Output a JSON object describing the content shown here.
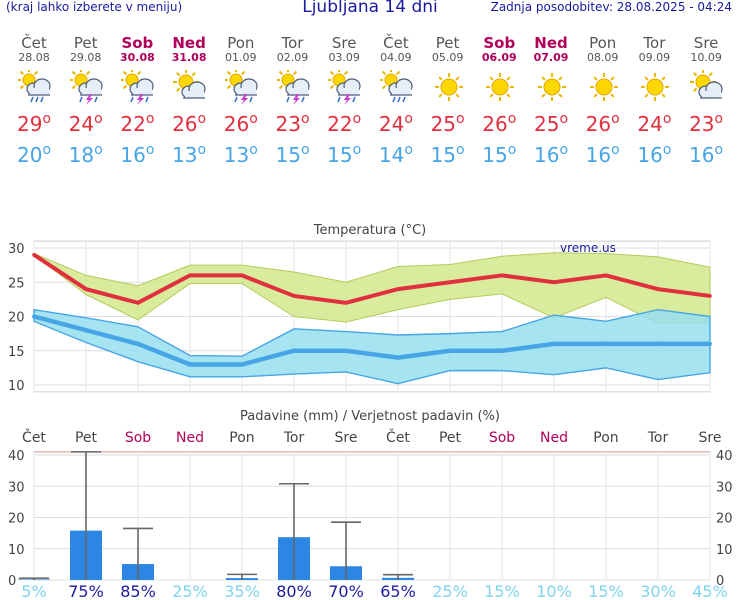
{
  "header": {
    "menu_hint": "(kraj lahko izberete v meniju)",
    "title": "Ljubljana 14 dni",
    "updated": "Zadnja posodobitev: 28.08.2025 - 04:24"
  },
  "days": [
    {
      "name": "Čet",
      "date": "28.08",
      "weekend": false,
      "icon": "sun-cloud-rain-icon",
      "tmax": "29",
      "tmin": "20"
    },
    {
      "name": "Pet",
      "date": "29.08",
      "weekend": false,
      "icon": "sun-thunderstorm-icon",
      "tmax": "24",
      "tmin": "18"
    },
    {
      "name": "Sob",
      "date": "30.08",
      "weekend": true,
      "icon": "sun-thunderstorm-icon",
      "tmax": "22",
      "tmin": "16"
    },
    {
      "name": "Ned",
      "date": "31.08",
      "weekend": true,
      "icon": "sun-cloud-icon",
      "tmax": "26",
      "tmin": "13"
    },
    {
      "name": "Pon",
      "date": "01.09",
      "weekend": false,
      "icon": "sun-thunderstorm-icon",
      "tmax": "26",
      "tmin": "13"
    },
    {
      "name": "Tor",
      "date": "02.09",
      "weekend": false,
      "icon": "sun-thunderstorm-icon",
      "tmax": "23",
      "tmin": "15"
    },
    {
      "name": "Sre",
      "date": "03.09",
      "weekend": false,
      "icon": "sun-thunderstorm-icon",
      "tmax": "22",
      "tmin": "15"
    },
    {
      "name": "Čet",
      "date": "04.09",
      "weekend": false,
      "icon": "sun-cloud-rain-icon",
      "tmax": "24",
      "tmin": "14"
    },
    {
      "name": "Pet",
      "date": "05.09",
      "weekend": false,
      "icon": "sun-icon",
      "tmax": "25",
      "tmin": "15"
    },
    {
      "name": "Sob",
      "date": "06.09",
      "weekend": true,
      "icon": "sun-icon",
      "tmax": "26",
      "tmin": "15"
    },
    {
      "name": "Ned",
      "date": "07.09",
      "weekend": true,
      "icon": "sun-icon",
      "tmax": "25",
      "tmin": "16"
    },
    {
      "name": "Pon",
      "date": "08.09",
      "weekend": false,
      "icon": "sun-icon",
      "tmax": "26",
      "tmin": "16"
    },
    {
      "name": "Tor",
      "date": "09.09",
      "weekend": false,
      "icon": "sun-icon",
      "tmax": "24",
      "tmin": "16"
    },
    {
      "name": "Sre",
      "date": "10.09",
      "weekend": false,
      "icon": "sun-cloud-icon",
      "tmax": "23",
      "tmin": "16"
    }
  ],
  "colors": {
    "tmax": "#e0303e",
    "tmin": "#47a5e6",
    "weekend": "#b0005a",
    "maxband": "#d2e98c",
    "minband": "#96dff0",
    "bar": "#2b87e3",
    "header": "#1a1aa0"
  },
  "chart_data": [
    {
      "type": "line",
      "title": "Temperatura (°C)",
      "watermark": "vreme.us",
      "categories": [
        "Čet",
        "Pet",
        "Sob",
        "Ned",
        "Pon",
        "Tor",
        "Sre",
        "Čet",
        "Pet",
        "Sob",
        "Ned",
        "Pon",
        "Tor",
        "Sre"
      ],
      "yticks": [
        10,
        15,
        20,
        25,
        30
      ],
      "ylim": [
        9,
        31
      ],
      "series": [
        {
          "values": [
            29,
            24,
            22,
            26,
            26,
            23,
            22,
            24,
            25,
            26,
            25,
            26,
            24,
            23
          ]
        },
        {
          "values": [
            20,
            18,
            16,
            13,
            13,
            15,
            15,
            14,
            15,
            15,
            16,
            16,
            16,
            16
          ]
        }
      ],
      "max_band_upper": [
        29.2,
        26,
        24.5,
        27.5,
        27.5,
        26.5,
        25,
        27.3,
        27.6,
        28.8,
        29.3,
        29.2,
        28.7,
        27.2
      ],
      "max_band_lower": [
        29,
        23.2,
        19.5,
        24.8,
        24.8,
        20,
        19.2,
        21,
        22.5,
        23.3,
        19.8,
        22.8,
        19,
        19
      ],
      "min_band_upper": [
        21,
        19.8,
        18.5,
        14.3,
        14.2,
        18.2,
        17.8,
        17.3,
        17.5,
        17.8,
        20.2,
        19.3,
        21,
        20
      ],
      "min_band_lower": [
        19.3,
        16.2,
        13.4,
        11.2,
        11.2,
        11.6,
        11.9,
        10.2,
        12.1,
        12.1,
        11.5,
        12.5,
        10.8,
        11.8
      ]
    },
    {
      "type": "bar",
      "title": "Padavine (mm) / Verjetnost padavin (%)",
      "categories": [
        "Čet",
        "Pet",
        "Sob",
        "Ned",
        "Pon",
        "Tor",
        "Sre",
        "Čet",
        "Pet",
        "Sob",
        "Ned",
        "Pon",
        "Tor",
        "Sre"
      ],
      "weekend": [
        false,
        false,
        true,
        true,
        false,
        false,
        false,
        false,
        false,
        true,
        true,
        false,
        false,
        false
      ],
      "yticks": [
        0,
        10,
        20,
        30,
        40
      ],
      "ylim": [
        0,
        41
      ],
      "values": [
        0.2,
        15.8,
        5.1,
        0,
        0.6,
        13.7,
        4.4,
        0.7,
        0,
        0,
        0,
        0,
        0,
        0
      ],
      "range_high": [
        0.6,
        41,
        16.5,
        0,
        1.8,
        30.8,
        18.5,
        1.7,
        0,
        0,
        0,
        0,
        0,
        0
      ],
      "probability": [
        "5%",
        "75%",
        "85%",
        "25%",
        "35%",
        "80%",
        "70%",
        "65%",
        "25%",
        "15%",
        "10%",
        "15%",
        "30%",
        "45%"
      ],
      "probability_high": [
        false,
        true,
        true,
        false,
        false,
        true,
        true,
        true,
        false,
        false,
        false,
        false,
        false,
        false
      ]
    }
  ]
}
